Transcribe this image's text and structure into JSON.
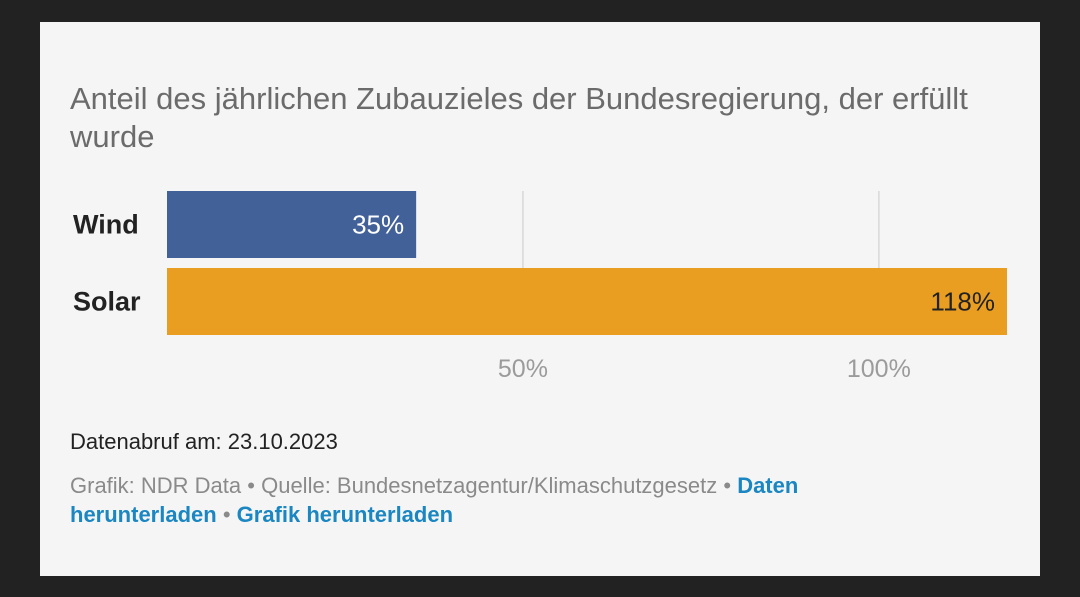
{
  "chart_data": {
    "type": "bar",
    "orientation": "horizontal",
    "title": "Anteil des jährlichen Zubauzieles der Bundesregierung, der erfüllt wurde",
    "categories": [
      "Wind",
      "Solar"
    ],
    "values": [
      35,
      118
    ],
    "value_labels": [
      "35%",
      "118%"
    ],
    "bar_colors": [
      "#426199",
      "#e99e22"
    ],
    "xticks": [
      50,
      100
    ],
    "xtick_labels": [
      "50%",
      "100%"
    ],
    "xlim": [
      0,
      118
    ],
    "grid": true,
    "xlabel": "",
    "ylabel": ""
  },
  "meta": {
    "date_line": "Datenabruf am: 23.10.2023"
  },
  "footer": {
    "credit": "Grafik: NDR Data",
    "separator": " • ",
    "source": "Quelle: Bundesnetzagentur/Klimaschutzgesetz",
    "download_data": "Daten herunterladen",
    "download_graphic": "Grafik herunterladen"
  }
}
